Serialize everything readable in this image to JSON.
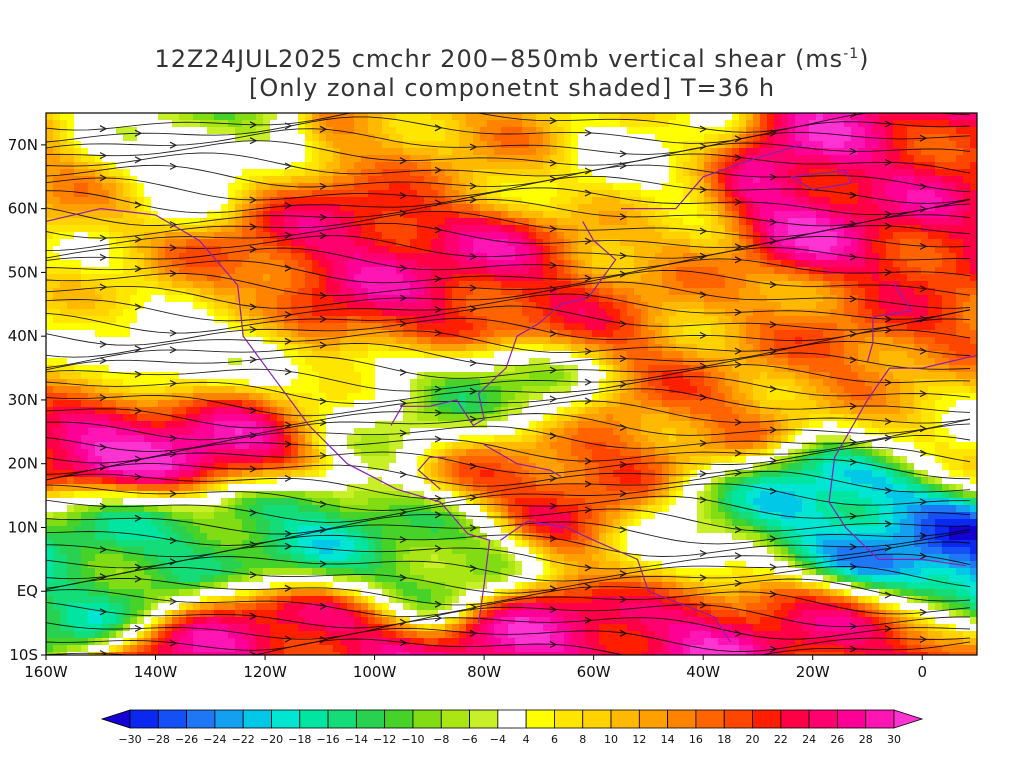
{
  "title": {
    "line1_main": "12Z24JUL2025 cmchr 200−850mb vertical shear (ms",
    "line1_sup": "-1",
    "line1_end": ")",
    "line2": "[Only zonal componetnt shaded] T=36 h"
  },
  "map": {
    "lon_range": [
      -160,
      10
    ],
    "lat_range": [
      -10,
      75
    ],
    "x_ticks": [
      {
        "value": -160,
        "label": "160W"
      },
      {
        "value": -140,
        "label": "140W"
      },
      {
        "value": -120,
        "label": "120W"
      },
      {
        "value": -100,
        "label": "100W"
      },
      {
        "value": -80,
        "label": "80W"
      },
      {
        "value": -60,
        "label": "60W"
      },
      {
        "value": -40,
        "label": "40W"
      },
      {
        "value": -20,
        "label": "20W"
      },
      {
        "value": 0,
        "label": "0"
      }
    ],
    "y_ticks": [
      {
        "value": -10,
        "label": "10S"
      },
      {
        "value": 0,
        "label": "EQ"
      },
      {
        "value": 10,
        "label": "10N"
      },
      {
        "value": 20,
        "label": "20N"
      },
      {
        "value": 30,
        "label": "30N"
      },
      {
        "value": 40,
        "label": "40N"
      },
      {
        "value": 50,
        "label": "50N"
      },
      {
        "value": 60,
        "label": "60N"
      },
      {
        "value": 70,
        "label": "70N"
      }
    ],
    "shear_features": [
      {
        "lon": -145,
        "lat": 23,
        "value": 30
      },
      {
        "lon": -125,
        "lat": 25,
        "value": 28
      },
      {
        "lon": -100,
        "lat": 53,
        "value": 26
      },
      {
        "lon": -75,
        "lat": 50,
        "value": 24
      },
      {
        "lon": -95,
        "lat": 44,
        "value": 22
      },
      {
        "lon": -60,
        "lat": 45,
        "value": 18
      },
      {
        "lon": -20,
        "lat": 60,
        "value": 28
      },
      {
        "lon": -5,
        "lat": 60,
        "value": 22
      },
      {
        "lon": -75,
        "lat": 20,
        "value": 22
      },
      {
        "lon": -62,
        "lat": 14,
        "value": 20
      },
      {
        "lon": -45,
        "lat": 27,
        "value": 16
      },
      {
        "lon": -40,
        "lat": -5,
        "value": 28
      },
      {
        "lon": -65,
        "lat": -8,
        "value": 26
      },
      {
        "lon": -115,
        "lat": -7,
        "value": 24
      },
      {
        "lon": -20,
        "lat": -6,
        "value": 22
      },
      {
        "lon": -150,
        "lat": 62,
        "value": 14
      },
      {
        "lon": -10,
        "lat": 40,
        "value": 18
      },
      {
        "lon": -30,
        "lat": 38,
        "value": 12
      },
      {
        "lon": -135,
        "lat": 45,
        "value": 16
      },
      {
        "lon": -145,
        "lat": 8,
        "value": -14
      },
      {
        "lon": -115,
        "lat": 9,
        "value": -16
      },
      {
        "lon": -90,
        "lat": 7,
        "value": -12
      },
      {
        "lon": -78,
        "lat": 30,
        "value": -12
      },
      {
        "lon": -95,
        "lat": 28,
        "value": -10
      },
      {
        "lon": -5,
        "lat": 8,
        "value": -26
      },
      {
        "lon": -15,
        "lat": 13,
        "value": -20
      },
      {
        "lon": -35,
        "lat": 10,
        "value": -14
      },
      {
        "lon": -135,
        "lat": 38,
        "value": -10
      },
      {
        "lon": -135,
        "lat": 65,
        "value": -8
      },
      {
        "lon": -152,
        "lat": 48,
        "value": 4
      },
      {
        "lon": -55,
        "lat": 64,
        "value": 4
      },
      {
        "lon": -108,
        "lat": 30,
        "value": 6
      },
      {
        "lon": -48,
        "lat": 52,
        "value": 10
      },
      {
        "lon": -45,
        "lat": 5,
        "value": 6
      },
      {
        "lon": -160,
        "lat": 35,
        "value": 10
      },
      {
        "lon": 5,
        "lat": 25,
        "value": 6
      },
      {
        "lon": -85,
        "lat": 68,
        "value": 12
      },
      {
        "lon": -120,
        "lat": 58,
        "value": 20
      }
    ]
  },
  "colorbar": {
    "levels": [
      -30,
      -28,
      -26,
      -24,
      -22,
      -20,
      -18,
      -16,
      -14,
      -12,
      -10,
      -8,
      -6,
      -4,
      4,
      6,
      8,
      10,
      12,
      14,
      16,
      18,
      20,
      22,
      24,
      26,
      28,
      30
    ],
    "labels": [
      "−30",
      "−28",
      "−26",
      "−24",
      "−22",
      "−20",
      "−18",
      "−16",
      "−14",
      "−12",
      "−10",
      "−8",
      "−6",
      "−4",
      "4",
      "6",
      "8",
      "10",
      "12",
      "14",
      "16",
      "18",
      "20",
      "22",
      "24",
      "26",
      "28",
      "30"
    ],
    "colors": [
      "#1400d2",
      "#0a28f0",
      "#1450f5",
      "#1e78f5",
      "#14a0f0",
      "#00c8e6",
      "#00e6d2",
      "#00e6a0",
      "#14dc78",
      "#28d250",
      "#46d228",
      "#82dc14",
      "#aae614",
      "#c8f028",
      "#ffffff",
      "#ffff00",
      "#ffe600",
      "#ffd200",
      "#ffb900",
      "#ffa000",
      "#ff8200",
      "#ff6400",
      "#ff4600",
      "#ff1e00",
      "#ff0046",
      "#ff006e",
      "#ff0096",
      "#ff14b4",
      "#ff32d2"
    ]
  }
}
